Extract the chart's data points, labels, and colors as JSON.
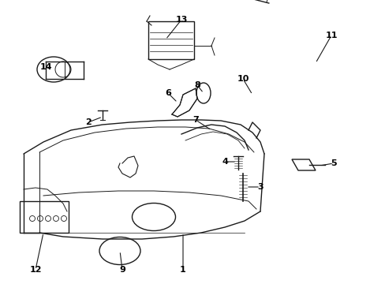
{
  "bg_color": "#ffffff",
  "line_color": "#1a1a1a",
  "text_color": "#000000",
  "fig_width": 4.89,
  "fig_height": 3.6,
  "dpi": 100
}
